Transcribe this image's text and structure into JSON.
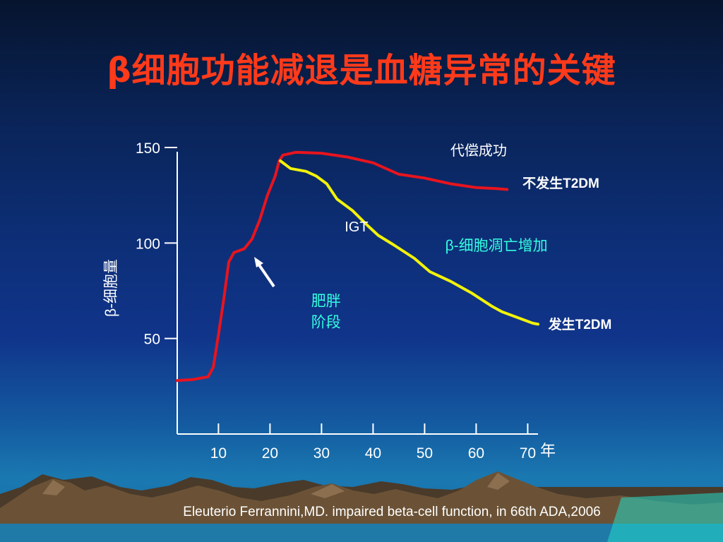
{
  "slide": {
    "title": "β细胞功能减退是血糖异常的关键",
    "citation": "Eleuterio Ferrannini,MD.   impaired beta-cell function, in 66th ADA,2006"
  },
  "colors": {
    "title": "#ff3a1a",
    "red_curve": "#e8141e",
    "yellow_curve": "#f2f20a",
    "cyan_text": "#33ffe0"
  },
  "chart_data": {
    "type": "line",
    "ylabel": "β-细胞量",
    "xlabel": "年",
    "x_ticks": [
      10,
      20,
      30,
      40,
      50,
      60,
      70
    ],
    "y_ticks": [
      50,
      100,
      150
    ],
    "xlim": [
      2,
      72
    ],
    "ylim": [
      0,
      150
    ],
    "series": [
      {
        "name": "不发生T2DM",
        "color": "#e8141e",
        "points": [
          [
            2,
            28
          ],
          [
            5,
            28.5
          ],
          [
            8,
            30
          ],
          [
            9,
            35
          ],
          [
            10,
            52
          ],
          [
            11,
            70
          ],
          [
            12,
            90
          ],
          [
            13,
            95
          ],
          [
            15,
            97
          ],
          [
            16.5,
            102
          ],
          [
            18,
            112
          ],
          [
            19.5,
            125
          ],
          [
            21,
            135
          ],
          [
            21.8,
            143
          ],
          [
            22.5,
            146
          ],
          [
            25,
            147.5
          ],
          [
            30,
            147
          ],
          [
            35,
            145
          ],
          [
            40,
            142
          ],
          [
            45,
            136
          ],
          [
            50,
            134
          ],
          [
            55,
            131
          ],
          [
            60,
            129
          ],
          [
            64,
            128.5
          ],
          [
            66,
            128
          ]
        ]
      },
      {
        "name": "发生T2DM",
        "color": "#f2f20a",
        "points": [
          [
            22,
            143
          ],
          [
            24,
            139
          ],
          [
            27,
            137.5
          ],
          [
            29,
            135
          ],
          [
            31,
            131
          ],
          [
            33,
            123
          ],
          [
            36,
            117
          ],
          [
            39,
            109
          ],
          [
            41,
            104
          ],
          [
            44,
            99
          ],
          [
            48,
            92
          ],
          [
            51,
            85
          ],
          [
            55,
            80
          ],
          [
            59,
            74
          ],
          [
            63,
            67
          ],
          [
            65,
            64
          ],
          [
            68,
            61
          ],
          [
            71,
            58
          ],
          [
            72,
            57.5
          ]
        ]
      }
    ],
    "annotations": [
      {
        "id": "compensation",
        "text": "代偿成功",
        "x": 55,
        "y": 146,
        "color": "#ffffff"
      },
      {
        "id": "no_t2dm",
        "text": "不发生T2DM",
        "x": 69,
        "y": 129,
        "color": "#ffffff"
      },
      {
        "id": "igt",
        "text": "IGT",
        "x": 34.5,
        "y": 106,
        "color": "#ffffff"
      },
      {
        "id": "apoptosis",
        "text": "β-细胞凋亡增加",
        "x": 54,
        "y": 96,
        "color": "#33ffe0"
      },
      {
        "id": "obesity_1",
        "text": "肥胖",
        "x": 28,
        "y": 67,
        "color": "#33ffe0"
      },
      {
        "id": "obesity_2",
        "text": "阶段",
        "x": 28,
        "y": 56,
        "color": "#33ffe0"
      },
      {
        "id": "t2dm",
        "text": "发生T2DM",
        "x": 74,
        "y": 55,
        "color": "#ffffff"
      }
    ]
  }
}
